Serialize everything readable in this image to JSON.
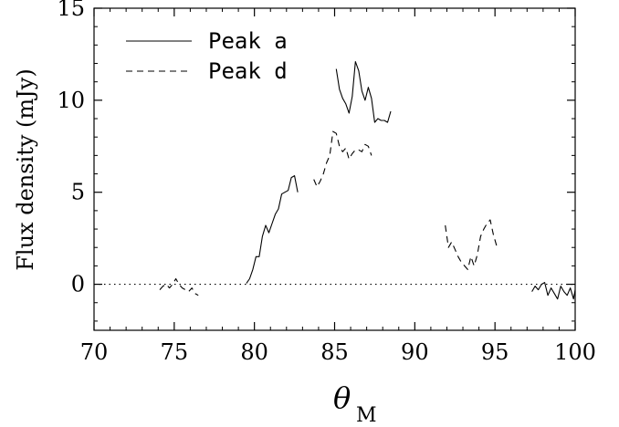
{
  "chart_data": {
    "type": "line",
    "title": "",
    "xlabel": "θ",
    "xlabel_subscript": "M",
    "ylabel": "Flux density (mJy)",
    "xlim": [
      70,
      100
    ],
    "ylim": [
      -2.5,
      15
    ],
    "xticks": [
      "70",
      "75",
      "80",
      "85",
      "90",
      "95",
      "100"
    ],
    "yticks": [
      "0",
      "5",
      "10",
      "15"
    ],
    "grid": false,
    "legend_position": "top-left",
    "reference_line": {
      "y": 0,
      "style": "dotted"
    },
    "series": [
      {
        "name": "Peak a",
        "style": "solid",
        "segments": [
          [
            [
              79.5,
              0.05
            ],
            [
              79.7,
              0.3
            ],
            [
              79.9,
              0.8
            ],
            [
              80.1,
              1.5
            ],
            [
              80.3,
              1.5
            ],
            [
              80.5,
              2.6
            ],
            [
              80.7,
              3.2
            ],
            [
              80.9,
              2.8
            ],
            [
              81.1,
              3.3
            ],
            [
              81.3,
              3.8
            ],
            [
              81.5,
              4.1
            ],
            [
              81.7,
              4.9
            ],
            [
              81.9,
              5.0
            ],
            [
              82.1,
              5.1
            ],
            [
              82.3,
              5.8
            ],
            [
              82.5,
              5.9
            ],
            [
              82.7,
              5.0
            ]
          ],
          [
            [
              85.1,
              11.7
            ],
            [
              85.3,
              10.6
            ],
            [
              85.5,
              10.1
            ],
            [
              85.7,
              9.8
            ],
            [
              85.9,
              9.3
            ],
            [
              86.1,
              10.2
            ],
            [
              86.3,
              12.1
            ],
            [
              86.5,
              11.6
            ],
            [
              86.7,
              10.5
            ],
            [
              86.9,
              10.0
            ],
            [
              87.1,
              10.7
            ],
            [
              87.3,
              10.1
            ],
            [
              87.5,
              8.8
            ],
            [
              87.7,
              9.0
            ],
            [
              87.9,
              8.9
            ],
            [
              88.1,
              8.9
            ],
            [
              88.3,
              8.8
            ],
            [
              88.5,
              9.4
            ]
          ]
        ]
      },
      {
        "name": "Peak d",
        "style": "dashed",
        "segments": [
          [
            [
              74.1,
              -0.3
            ],
            [
              74.3,
              -0.1
            ],
            [
              74.5,
              0.0
            ],
            [
              74.7,
              -0.2
            ],
            [
              74.9,
              0.0
            ],
            [
              75.1,
              0.3
            ],
            [
              75.3,
              0.0
            ],
            [
              75.5,
              -0.2
            ],
            [
              75.7,
              -0.3
            ],
            [
              75.9,
              -0.4
            ],
            [
              76.1,
              -0.2
            ],
            [
              76.3,
              -0.5
            ],
            [
              76.5,
              -0.6
            ]
          ],
          [
            [
              83.7,
              5.7
            ],
            [
              83.9,
              5.3
            ],
            [
              84.1,
              5.6
            ],
            [
              84.3,
              6.0
            ],
            [
              84.5,
              6.6
            ],
            [
              84.7,
              7.0
            ],
            [
              84.9,
              8.3
            ],
            [
              85.1,
              8.2
            ],
            [
              85.3,
              7.5
            ],
            [
              85.5,
              7.2
            ],
            [
              85.7,
              7.4
            ],
            [
              85.9,
              6.8
            ],
            [
              86.1,
              7.1
            ],
            [
              86.3,
              7.3
            ],
            [
              86.5,
              7.3
            ],
            [
              86.7,
              7.2
            ],
            [
              86.9,
              7.6
            ],
            [
              87.1,
              7.5
            ],
            [
              87.3,
              7.0
            ]
          ],
          [
            [
              91.9,
              3.2
            ],
            [
              92.1,
              2.0
            ],
            [
              92.3,
              2.3
            ],
            [
              92.5,
              1.9
            ],
            [
              92.7,
              1.5
            ],
            [
              92.9,
              1.2
            ],
            [
              93.1,
              1.0
            ],
            [
              93.3,
              0.8
            ],
            [
              93.5,
              1.5
            ],
            [
              93.7,
              1.0
            ],
            [
              93.9,
              1.6
            ],
            [
              94.1,
              2.6
            ],
            [
              94.3,
              3.0
            ],
            [
              94.5,
              3.3
            ],
            [
              94.7,
              3.5
            ],
            [
              94.9,
              2.7
            ],
            [
              95.1,
              2.1
            ],
            [
              95.3,
              2.0
            ]
          ]
        ]
      },
      {
        "name": "",
        "style": "solid",
        "segments": [
          [
            [
              97.3,
              -0.4
            ],
            [
              97.5,
              -0.1
            ],
            [
              97.7,
              -0.3
            ],
            [
              97.9,
              0.0
            ],
            [
              98.1,
              0.1
            ],
            [
              98.3,
              -0.6
            ],
            [
              98.5,
              -0.2
            ],
            [
              98.7,
              -0.5
            ],
            [
              98.9,
              -0.8
            ],
            [
              99.1,
              -0.1
            ],
            [
              99.3,
              -0.4
            ],
            [
              99.5,
              -0.6
            ],
            [
              99.7,
              -0.2
            ],
            [
              99.9,
              -0.8
            ],
            [
              100.0,
              -0.3
            ]
          ]
        ]
      }
    ],
    "legend": [
      {
        "label": "Peak a",
        "style": "solid"
      },
      {
        "label": "Peak d",
        "style": "dashed"
      }
    ]
  }
}
